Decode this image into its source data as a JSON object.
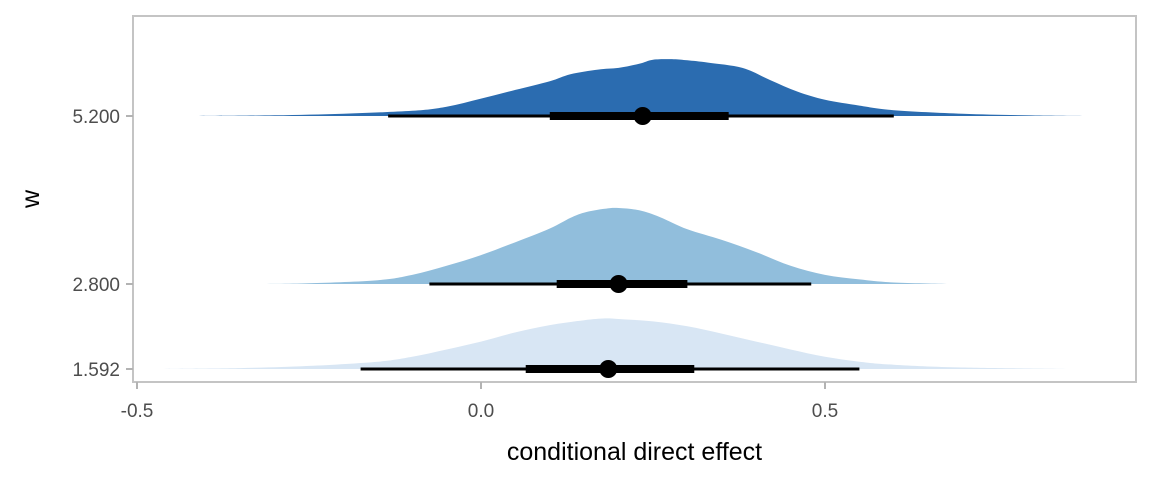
{
  "chart_data": {
    "type": "halfeye",
    "title": "",
    "xlabel": "conditional direct effect",
    "ylabel": "w",
    "xlim": [
      -0.5,
      0.95
    ],
    "x_ticks": [
      -0.5,
      0.0,
      0.5
    ],
    "x_tick_labels": [
      "-0.5",
      "0.0",
      "0.5"
    ],
    "y_tick_labels": [
      "5.200",
      "2.800",
      "1.592"
    ],
    "grid": false,
    "legend": "none",
    "series": [
      {
        "w": "5.200",
        "w_value": 5.2,
        "fill": "#2b6cb0",
        "point": 0.235,
        "interval_66": [
          0.1,
          0.36
        ],
        "interval_95": [
          -0.135,
          0.6
        ],
        "range": [
          -0.41,
          0.88
        ],
        "density": [
          [
            -0.41,
            0.0
          ],
          [
            -0.3,
            0.012
          ],
          [
            -0.2,
            0.04
          ],
          [
            -0.1,
            0.09
          ],
          [
            -0.05,
            0.16
          ],
          [
            0.0,
            0.3
          ],
          [
            0.05,
            0.45
          ],
          [
            0.1,
            0.6
          ],
          [
            0.13,
            0.72
          ],
          [
            0.17,
            0.8
          ],
          [
            0.2,
            0.83
          ],
          [
            0.23,
            0.9
          ],
          [
            0.25,
            0.97
          ],
          [
            0.28,
            0.98
          ],
          [
            0.3,
            0.96
          ],
          [
            0.33,
            0.92
          ],
          [
            0.38,
            0.83
          ],
          [
            0.42,
            0.62
          ],
          [
            0.46,
            0.42
          ],
          [
            0.5,
            0.28
          ],
          [
            0.55,
            0.18
          ],
          [
            0.6,
            0.1
          ],
          [
            0.7,
            0.04
          ],
          [
            0.8,
            0.01
          ],
          [
            0.88,
            0.0
          ]
        ]
      },
      {
        "w": "2.800",
        "w_value": 2.8,
        "fill": "#91bedc",
        "point": 0.2,
        "interval_66": [
          0.11,
          0.3
        ],
        "interval_95": [
          -0.075,
          0.48
        ],
        "range": [
          -0.33,
          0.68
        ],
        "density": [
          [
            -0.33,
            0.0
          ],
          [
            -0.25,
            0.01
          ],
          [
            -0.15,
            0.05
          ],
          [
            -0.1,
            0.12
          ],
          [
            -0.05,
            0.24
          ],
          [
            0.0,
            0.38
          ],
          [
            0.05,
            0.55
          ],
          [
            0.1,
            0.73
          ],
          [
            0.13,
            0.87
          ],
          [
            0.15,
            0.94
          ],
          [
            0.18,
            0.99
          ],
          [
            0.2,
            1.0
          ],
          [
            0.23,
            0.97
          ],
          [
            0.26,
            0.88
          ],
          [
            0.3,
            0.72
          ],
          [
            0.35,
            0.58
          ],
          [
            0.4,
            0.42
          ],
          [
            0.45,
            0.24
          ],
          [
            0.5,
            0.12
          ],
          [
            0.55,
            0.06
          ],
          [
            0.6,
            0.02
          ],
          [
            0.68,
            0.0
          ]
        ]
      },
      {
        "w": "1.592",
        "w_value": 1.592,
        "fill": "#d8e6f4",
        "point": 0.185,
        "interval_66": [
          0.065,
          0.31
        ],
        "interval_95": [
          -0.175,
          0.55
        ],
        "range": [
          -0.47,
          0.86
        ],
        "density": [
          [
            -0.47,
            0.0
          ],
          [
            -0.35,
            0.015
          ],
          [
            -0.25,
            0.05
          ],
          [
            -0.15,
            0.12
          ],
          [
            -0.1,
            0.2
          ],
          [
            -0.05,
            0.32
          ],
          [
            0.0,
            0.45
          ],
          [
            0.05,
            0.6
          ],
          [
            0.1,
            0.72
          ],
          [
            0.15,
            0.8
          ],
          [
            0.18,
            0.83
          ],
          [
            0.2,
            0.82
          ],
          [
            0.25,
            0.78
          ],
          [
            0.3,
            0.7
          ],
          [
            0.35,
            0.58
          ],
          [
            0.4,
            0.45
          ],
          [
            0.45,
            0.32
          ],
          [
            0.5,
            0.2
          ],
          [
            0.55,
            0.12
          ],
          [
            0.6,
            0.07
          ],
          [
            0.7,
            0.025
          ],
          [
            0.86,
            0.0
          ]
        ]
      }
    ]
  }
}
